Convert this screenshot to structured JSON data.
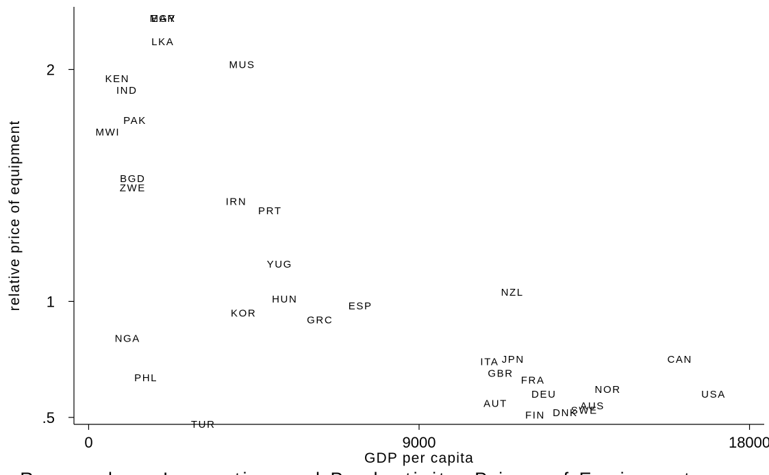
{
  "chart_data": {
    "type": "scatter",
    "xlabel": "GDP per capita",
    "ylabel": "relative price of equipment",
    "caption": "Research on Innovation and Productivity: Prices of Equipment",
    "xlim": [
      -400,
      18400
    ],
    "ylim": [
      0.47,
      2.27
    ],
    "x_ticks": [
      {
        "value": 0,
        "label": "0"
      },
      {
        "value": 9000,
        "label": "9000"
      },
      {
        "value": 18000,
        "label": "18000"
      }
    ],
    "y_ticks": [
      {
        "value": 0.5,
        "label": ".5"
      },
      {
        "value": 1,
        "label": "1"
      },
      {
        "value": 2,
        "label": "2"
      }
    ],
    "marker": "country-code label",
    "points": [
      {
        "label": "MAR",
        "x": 2020,
        "y": 2.22
      },
      {
        "label": "EGY",
        "x": 2040,
        "y": 2.22
      },
      {
        "label": "LKA",
        "x": 2020,
        "y": 2.12
      },
      {
        "label": "MUS",
        "x": 4180,
        "y": 2.02
      },
      {
        "label": "KEN",
        "x": 780,
        "y": 1.96
      },
      {
        "label": "IND",
        "x": 1040,
        "y": 1.91
      },
      {
        "label": "PAK",
        "x": 1260,
        "y": 1.78
      },
      {
        "label": "MWI",
        "x": 520,
        "y": 1.73
      },
      {
        "label": "BGD",
        "x": 1200,
        "y": 1.53
      },
      {
        "label": "ZWE",
        "x": 1200,
        "y": 1.49
      },
      {
        "label": "IRN",
        "x": 4020,
        "y": 1.43
      },
      {
        "label": "PRT",
        "x": 4940,
        "y": 1.39
      },
      {
        "label": "YUG",
        "x": 5200,
        "y": 1.16
      },
      {
        "label": "NZL",
        "x": 11540,
        "y": 1.04
      },
      {
        "label": "HUN",
        "x": 5340,
        "y": 1.01
      },
      {
        "label": "ESP",
        "x": 7400,
        "y": 0.98
      },
      {
        "label": "KOR",
        "x": 4220,
        "y": 0.95
      },
      {
        "label": "GRC",
        "x": 6300,
        "y": 0.92
      },
      {
        "label": "NGA",
        "x": 1060,
        "y": 0.84
      },
      {
        "label": "ITA",
        "x": 10920,
        "y": 0.74
      },
      {
        "label": "JPN",
        "x": 11560,
        "y": 0.75
      },
      {
        "label": "CAN",
        "x": 16100,
        "y": 0.75
      },
      {
        "label": "PHL",
        "x": 1560,
        "y": 0.67
      },
      {
        "label": "GBR",
        "x": 11220,
        "y": 0.69
      },
      {
        "label": "FRA",
        "x": 12100,
        "y": 0.66
      },
      {
        "label": "NOR",
        "x": 14140,
        "y": 0.62
      },
      {
        "label": "DEU",
        "x": 12400,
        "y": 0.6
      },
      {
        "label": "USA",
        "x": 17020,
        "y": 0.6
      },
      {
        "label": "AUT",
        "x": 11080,
        "y": 0.56
      },
      {
        "label": "AUS",
        "x": 13720,
        "y": 0.55
      },
      {
        "label": "SWE",
        "x": 13500,
        "y": 0.53
      },
      {
        "label": "DNK",
        "x": 12980,
        "y": 0.52
      },
      {
        "label": "FIN",
        "x": 12160,
        "y": 0.51
      },
      {
        "label": "TUR",
        "x": 3120,
        "y": 0.47
      }
    ]
  }
}
